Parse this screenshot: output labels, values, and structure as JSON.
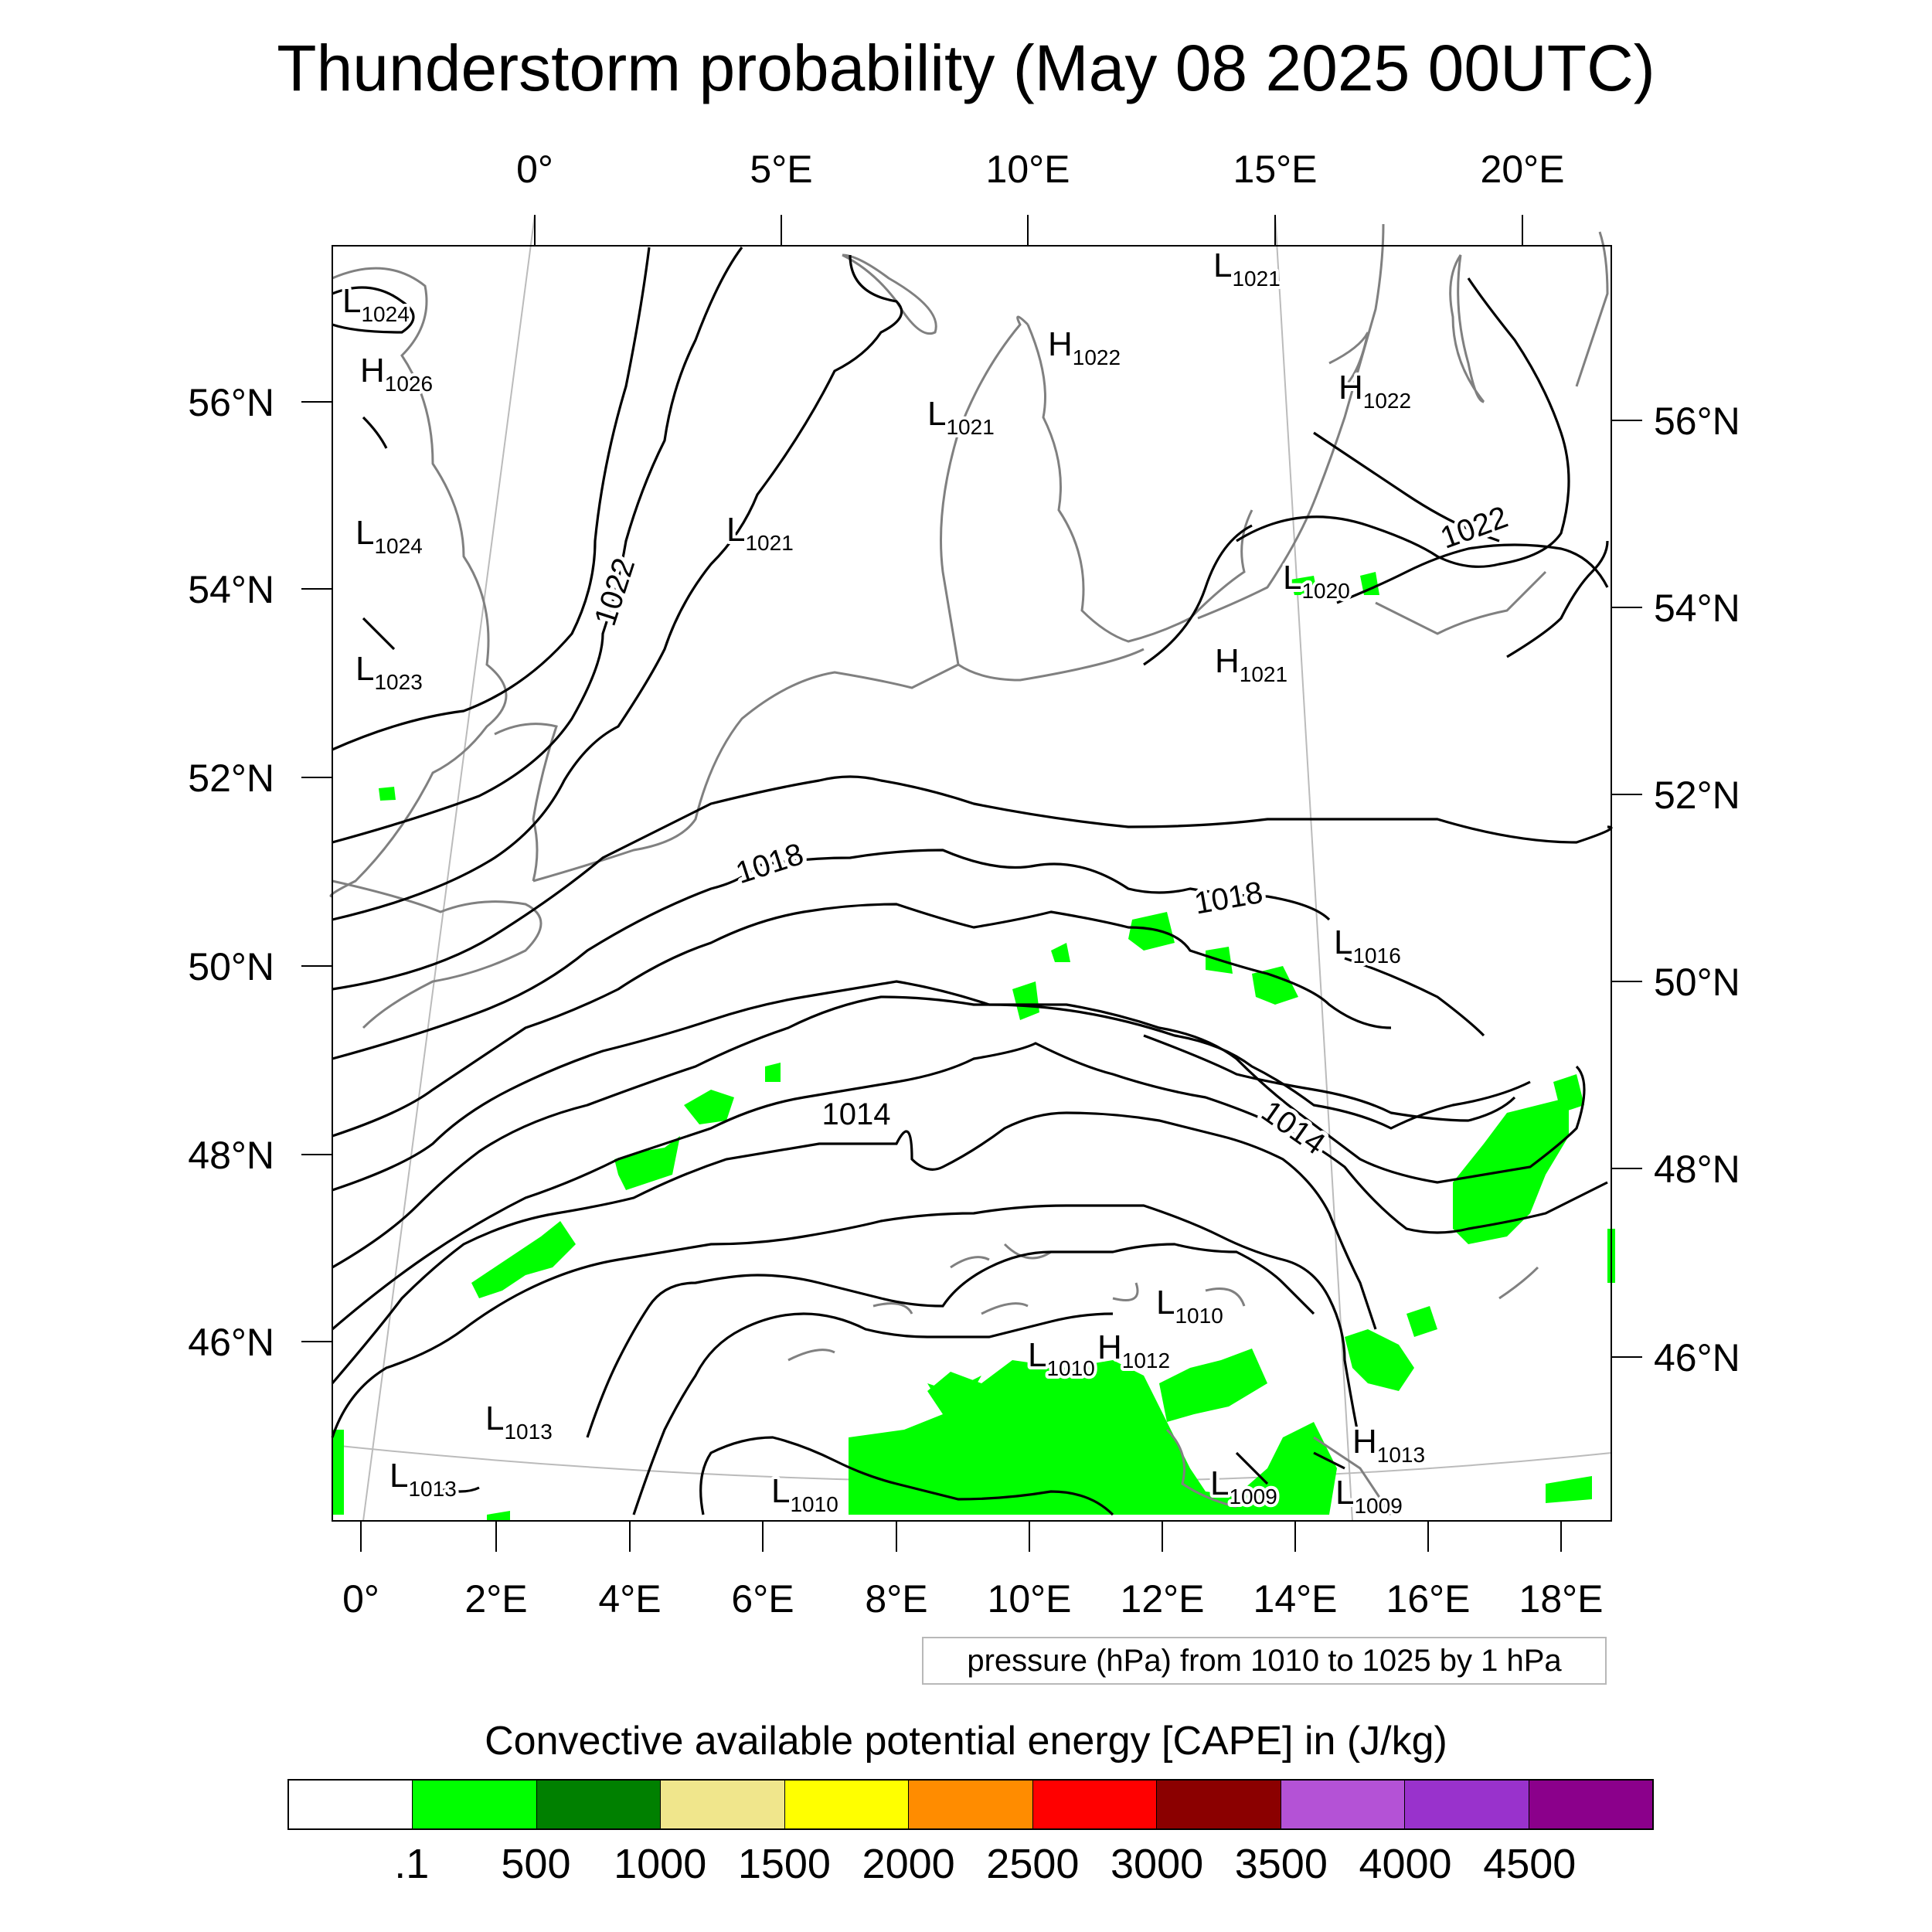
{
  "title": "Thunderstorm probability (May 08 2025 00UTC)",
  "top_lon_labels": [
    "0°",
    "5°E",
    "10°E",
    "15°E",
    "20°E"
  ],
  "bottom_lon_labels": [
    "0°",
    "2°E",
    "4°E",
    "6°E",
    "8°E",
    "10°E",
    "12°E",
    "14°E",
    "16°E",
    "18°E"
  ],
  "left_lat_labels": [
    "56°N",
    "54°N",
    "52°N",
    "50°N",
    "48°N",
    "46°N"
  ],
  "right_lat_labels": [
    "56°N",
    "54°N",
    "52°N",
    "50°N",
    "48°N",
    "46°N"
  ],
  "isobar_labels": [
    "1022",
    "1018",
    "1014",
    "1022",
    "1018",
    "1014"
  ],
  "pressure_centers": [
    {
      "type": "L",
      "value": "1024"
    },
    {
      "type": "H",
      "value": "1026"
    },
    {
      "type": "L",
      "value": "1024"
    },
    {
      "type": "L",
      "value": "1023"
    },
    {
      "type": "L",
      "value": "1021"
    },
    {
      "type": "L",
      "value": "1021"
    },
    {
      "type": "H",
      "value": "1022"
    },
    {
      "type": "L",
      "value": "1021"
    },
    {
      "type": "H",
      "value": "1022"
    },
    {
      "type": "L",
      "value": "1020"
    },
    {
      "type": "H",
      "value": "1021"
    },
    {
      "type": "L",
      "value": "1016"
    },
    {
      "type": "L",
      "value": "1010"
    },
    {
      "type": "L",
      "value": "1010"
    },
    {
      "type": "H",
      "value": "1012"
    },
    {
      "type": "L",
      "value": "1013"
    },
    {
      "type": "L",
      "value": "1013"
    },
    {
      "type": "L",
      "value": "1010"
    },
    {
      "type": "H",
      "value": "1013"
    },
    {
      "type": "L",
      "value": "1009"
    },
    {
      "type": "L",
      "value": "1009"
    }
  ],
  "pressure_info": "pressure (hPa) from 1010 to 1025 by 1 hPa",
  "cape_title": "Convective available potential energy [CAPE] in (J/kg)",
  "colorbar": {
    "colors": [
      "#ffffff",
      "#00ff00",
      "#008000",
      "#f0e68c",
      "#ffff00",
      "#ff8c00",
      "#ff0000",
      "#8b0000",
      "#b452d6",
      "#9932cc",
      "#8b008b"
    ],
    "labels": [
      ".1",
      "500",
      "1000",
      "1500",
      "2000",
      "2500",
      "3000",
      "3500",
      "4000",
      "4500"
    ]
  },
  "colors": {
    "isobar": "#000000",
    "coastline": "#808080",
    "cape_fill": "#00ff00",
    "graticule": "#bbbbbb"
  }
}
